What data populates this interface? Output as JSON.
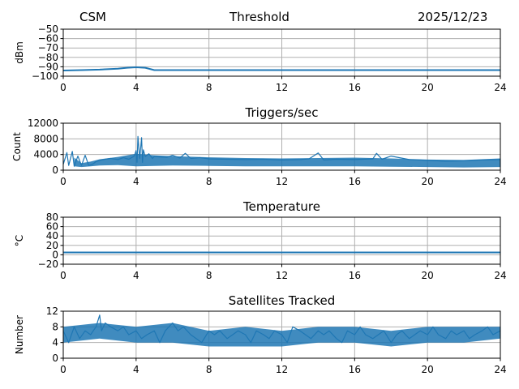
{
  "header": {
    "left": "CSM",
    "center": "Threshold",
    "right": "2025/12/23"
  },
  "colors": {
    "series": "#1f77b4",
    "grid": "#b0b0b0"
  },
  "chart_data": [
    {
      "type": "line",
      "title": "",
      "xlabel": "",
      "ylabel": "dBm",
      "xlim": [
        0,
        24
      ],
      "ylim": [
        -100,
        -50
      ],
      "xticks": [
        0,
        4,
        8,
        12,
        16,
        20,
        24
      ],
      "yticks": [
        -100,
        -90,
        -80,
        -70,
        -60,
        -50
      ],
      "grid": true,
      "series": [
        {
          "x": [
            0,
            1,
            2,
            3,
            3.5,
            4,
            4.5,
            5,
            6,
            8,
            12,
            16,
            20,
            24
          ],
          "values": [
            -94,
            -93.5,
            -93,
            -92,
            -91,
            -90.5,
            -91,
            -93.5,
            -93.5,
            -93.5,
            -93.5,
            -93.5,
            -93.5,
            -93.5
          ],
          "stroke_width": 2
        }
      ]
    },
    {
      "type": "line",
      "title": "Triggers/sec",
      "xlabel": "",
      "ylabel": "Count",
      "xlim": [
        0,
        24
      ],
      "ylim": [
        0,
        12000
      ],
      "xticks": [
        0,
        4,
        8,
        12,
        16,
        20,
        24
      ],
      "yticks": [
        0,
        4000,
        8000,
        12000
      ],
      "grid": true,
      "series": [
        {
          "x": [
            0,
            0.2,
            0.3,
            0.5,
            0.6,
            0.8,
            1.0,
            1.2,
            1.4,
            1.6,
            1.8,
            2.0,
            2.3,
            2.6,
            3.0,
            3.3,
            3.6,
            3.9,
            4.0,
            4.05,
            4.1,
            4.2,
            4.3,
            4.35,
            4.4,
            4.5,
            4.7,
            4.9,
            5.0,
            5.3,
            5.7,
            6.0,
            6.4,
            6.7,
            7.0,
            7.5,
            8.0,
            9.0,
            10.0,
            11.0,
            12.0,
            13.0,
            13.5,
            14.0,
            14.3,
            15.0,
            16.0,
            17.0,
            17.2,
            17.5,
            18.0,
            19.0,
            20.0,
            21.0,
            22.0,
            23.0,
            24.0
          ],
          "values": [
            1500,
            4500,
            1200,
            4800,
            1000,
            3600,
            1200,
            3800,
            1200,
            1500,
            2200,
            2500,
            2800,
            3000,
            2700,
            3200,
            2800,
            3600,
            5000,
            2000,
            8600,
            3000,
            8300,
            2000,
            5200,
            3500,
            4200,
            3000,
            3500,
            3400,
            3300,
            3800,
            3100,
            4300,
            3000,
            3200,
            2900,
            2800,
            2700,
            2800,
            2600,
            2700,
            2900,
            4400,
            2600,
            2800,
            2700,
            2900,
            4300,
            2800,
            3600,
            2700,
            2500,
            2300,
            2400,
            2600,
            2700
          ],
          "band": {
            "x": [
              0.6,
              1.0,
              1.5,
              2.0,
              3.0,
              4.0,
              5.0,
              6.0,
              8.0,
              10.0,
              12.0,
              14.0,
              16.0,
              18.0,
              20.0,
              22.0,
              24.0
            ],
            "high": [
              3200,
              1800,
              2200,
              2800,
              3400,
              4200,
              3800,
              3600,
              3300,
              3100,
              3000,
              3100,
              3200,
              3000,
              2700,
              2600,
              3000
            ],
            "low": [
              1000,
              800,
              1000,
              1200,
              1300,
              1000,
              1100,
              1200,
              1100,
              1000,
              1000,
              1000,
              1000,
              900,
              800,
              700,
              800
            ]
          },
          "stroke_width": 1.2
        }
      ]
    },
    {
      "type": "line",
      "title": "Temperature",
      "xlabel": "",
      "ylabel": "°C",
      "xlim": [
        0,
        24
      ],
      "ylim": [
        -20,
        80
      ],
      "xticks": [
        0,
        4,
        8,
        12,
        16,
        20,
        24
      ],
      "yticks": [
        -20,
        0,
        20,
        40,
        60,
        80
      ],
      "grid": true,
      "series": [
        {
          "x": [
            0,
            24
          ],
          "values": [
            5,
            5
          ],
          "stroke_width": 2
        }
      ]
    },
    {
      "type": "line",
      "title": "Satellites Tracked",
      "xlabel": "",
      "ylabel": "Number",
      "xlim": [
        0,
        24
      ],
      "ylim": [
        0,
        12
      ],
      "xticks": [
        0,
        4,
        8,
        12,
        16,
        20,
        24
      ],
      "yticks": [
        0,
        4,
        8,
        12
      ],
      "grid": true,
      "series": [
        {
          "x": [
            0,
            0.3,
            0.6,
            0.9,
            1.2,
            1.5,
            1.8,
            2.0,
            2.1,
            2.3,
            2.6,
            3.0,
            3.3,
            3.6,
            4.0,
            4.3,
            4.6,
            5.0,
            5.3,
            5.6,
            6.0,
            6.3,
            6.6,
            7.0,
            7.3,
            7.6,
            8.0,
            8.3,
            8.6,
            9.0,
            9.3,
            9.6,
            10.0,
            10.3,
            10.6,
            11.0,
            11.3,
            11.6,
            12.0,
            12.3,
            12.6,
            13.0,
            13.3,
            13.6,
            14.0,
            14.3,
            14.6,
            15.0,
            15.3,
            15.6,
            16.0,
            16.3,
            16.6,
            17.0,
            17.3,
            17.6,
            18.0,
            18.3,
            18.6,
            19.0,
            19.3,
            19.6,
            20.0,
            20.3,
            20.6,
            21.0,
            21.3,
            21.6,
            22.0,
            22.3,
            22.6,
            23.0,
            23.3,
            23.6,
            24.0
          ],
          "values": [
            7,
            4,
            8,
            5,
            7,
            6,
            8,
            11,
            7,
            9,
            8,
            7,
            8,
            6,
            7,
            5,
            6,
            7,
            4,
            7,
            9,
            7,
            8,
            6,
            5,
            4,
            7,
            6,
            7,
            5,
            6,
            7,
            6,
            4,
            7,
            6,
            5,
            7,
            6,
            4,
            8,
            7,
            6,
            5,
            7,
            6,
            7,
            5,
            4,
            7,
            6,
            8,
            6,
            5,
            6,
            7,
            4,
            6,
            7,
            5,
            6,
            7,
            6,
            8,
            6,
            5,
            7,
            6,
            7,
            5,
            6,
            7,
            8,
            6,
            7
          ],
          "band": {
            "x": [
              0,
              2,
              4,
              6,
              8,
              10,
              12,
              14,
              16,
              18,
              20,
              22,
              24
            ],
            "high": [
              8,
              9,
              8,
              9,
              7,
              8,
              7,
              8,
              8,
              7,
              8,
              8,
              8
            ],
            "low": [
              4,
              5,
              4,
              4,
              3,
              3,
              3,
              4,
              4,
              3,
              4,
              4,
              5
            ]
          },
          "stroke_width": 1.2
        }
      ]
    }
  ]
}
